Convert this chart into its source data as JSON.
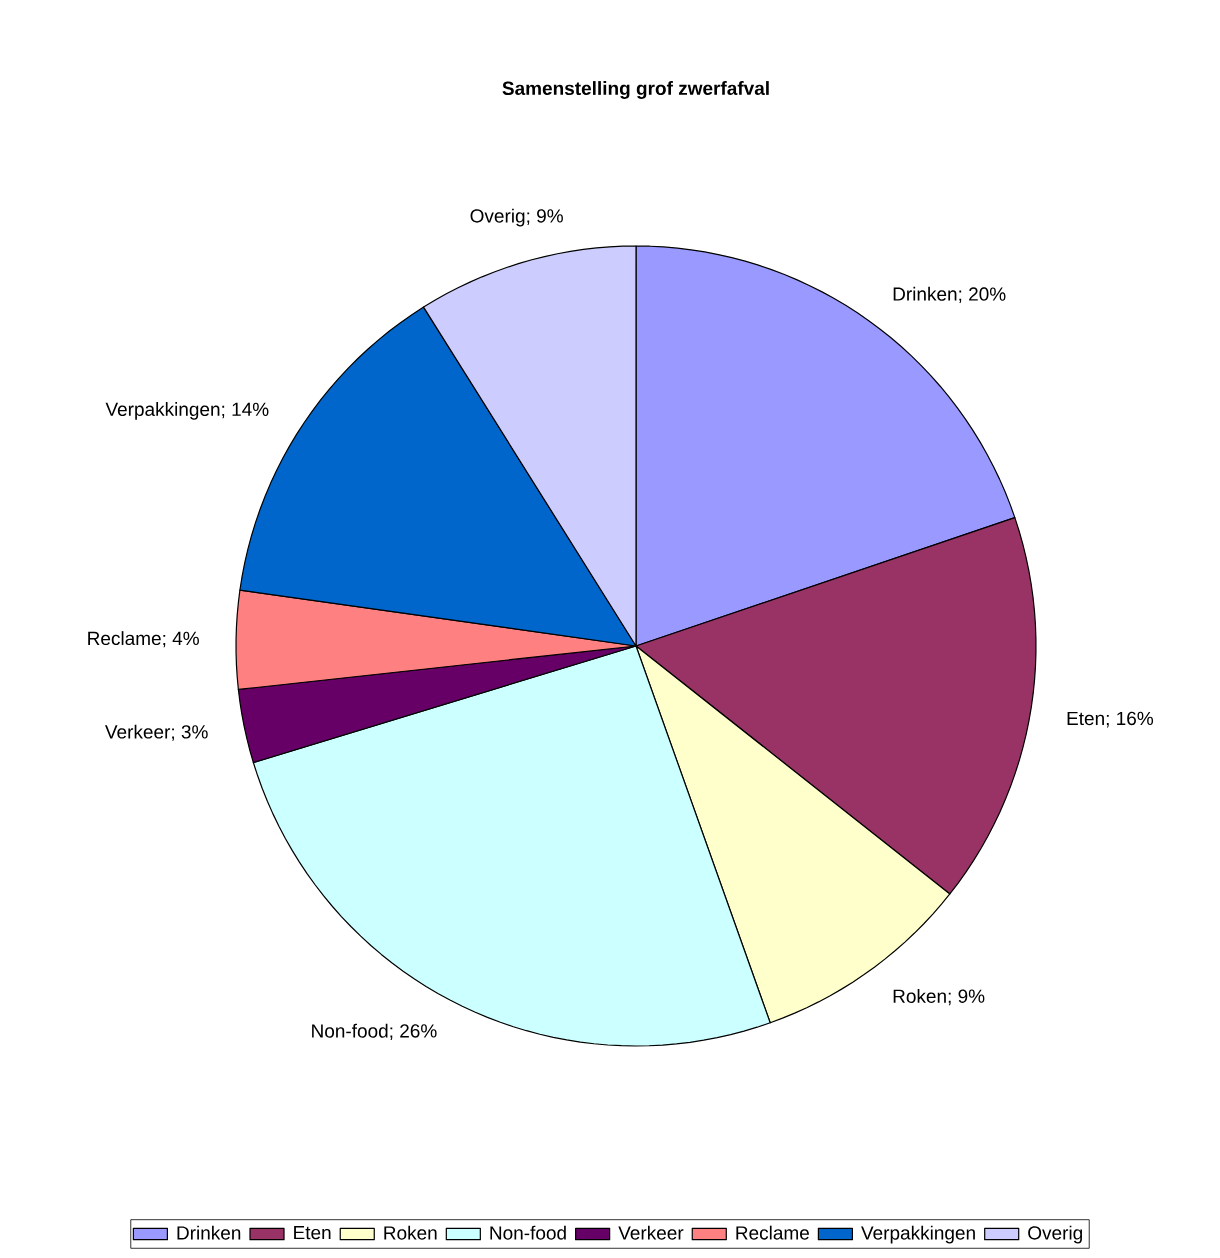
{
  "chart_data": {
    "type": "pie",
    "title": "Samenstelling grof zwerfafval",
    "categories": [
      "Drinken",
      "Eten",
      "Roken",
      "Non-food",
      "Verkeer",
      "Reclame",
      "Verpakkingen",
      "Overig"
    ],
    "values": [
      20,
      16,
      9,
      26,
      3,
      4,
      14,
      9
    ],
    "value_labels": [
      "Drinken; 20%",
      "Eten; 16%",
      "Roken; 9%",
      "Non-food; 26%",
      "Verkeer; 3%",
      "Reclame; 4%",
      "Verpakkingen; 14%",
      "Overig; 9%"
    ],
    "colors": [
      "#9999ff",
      "#993366",
      "#ffffcc",
      "#ccffff",
      "#660066",
      "#ff8080",
      "#0066cc",
      "#ccccff"
    ],
    "legend": "bottom"
  }
}
